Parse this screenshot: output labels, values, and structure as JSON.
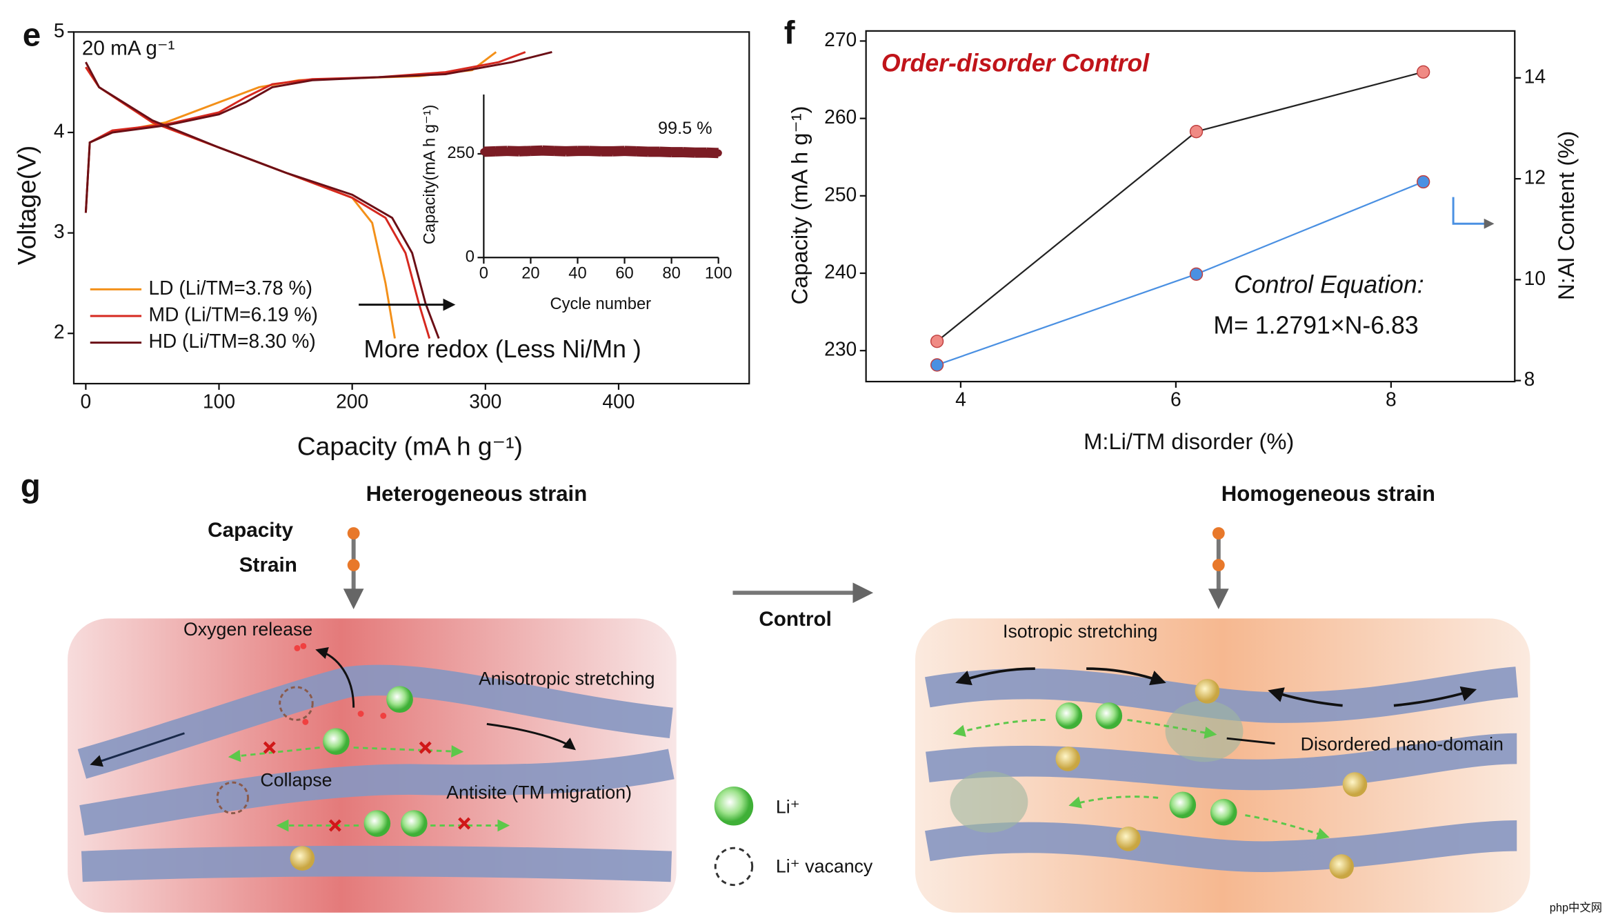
{
  "chart_data": [
    {
      "type": "line",
      "panel_label": "e",
      "x_label": "Capacity (mA h g⁻¹)",
      "y_label": "Voltage(V)",
      "xlim": [
        -9,
        498
      ],
      "ylim": [
        1.5,
        5.0
      ],
      "xticks": [
        0,
        100,
        200,
        300,
        400
      ],
      "yticks": [
        2,
        3,
        4,
        5
      ],
      "legend": "lower left",
      "annotations": [
        "20 mA g⁻¹",
        "More redox (Less Ni/Mn )"
      ],
      "series": [
        {
          "name": "LD (Li/TM=3.78 %)",
          "color": "#f39019",
          "x": [
            0,
            3,
            20,
            60,
            100,
            130,
            160,
            200,
            250,
            290,
            308,
            null,
            0,
            10,
            50,
            100,
            150,
            200,
            215,
            225,
            232
          ],
          "values": [
            3.2,
            3.9,
            4.0,
            4.1,
            4.3,
            4.45,
            4.52,
            4.54,
            4.56,
            4.62,
            4.8,
            null,
            4.65,
            4.45,
            4.1,
            3.85,
            3.6,
            3.35,
            3.1,
            2.5,
            1.95
          ]
        },
        {
          "name": "MD (Li/TM=6.19 %)",
          "color": "#d6281f",
          "x": [
            0,
            3,
            20,
            60,
            100,
            120,
            140,
            170,
            220,
            270,
            310,
            330,
            null,
            0,
            10,
            50,
            100,
            150,
            200,
            225,
            240,
            250,
            258
          ],
          "values": [
            3.2,
            3.9,
            4.02,
            4.08,
            4.2,
            4.35,
            4.48,
            4.53,
            4.55,
            4.6,
            4.7,
            4.8,
            null,
            4.65,
            4.45,
            4.1,
            3.85,
            3.6,
            3.35,
            3.15,
            2.8,
            2.3,
            1.95
          ]
        },
        {
          "name": "HD (Li/TM=8.30 %)",
          "color": "#6b0f16",
          "x": [
            0,
            3,
            20,
            60,
            100,
            120,
            140,
            170,
            220,
            270,
            320,
            350,
            null,
            0,
            10,
            50,
            100,
            150,
            200,
            230,
            245,
            255,
            265
          ],
          "values": [
            3.2,
            3.9,
            4.0,
            4.07,
            4.18,
            4.3,
            4.45,
            4.52,
            4.55,
            4.58,
            4.7,
            4.8,
            null,
            4.7,
            4.45,
            4.12,
            3.85,
            3.6,
            3.38,
            3.15,
            2.8,
            2.3,
            1.95
          ]
        }
      ]
    },
    {
      "type": "scatter",
      "x_label": "Cycle number",
      "y_label": "Capacity(mA h g⁻¹)",
      "xlim": [
        0,
        100
      ],
      "ylim": [
        0,
        393
      ],
      "xticks": [
        0,
        20,
        40,
        60,
        80,
        100
      ],
      "yticks": [
        0,
        250
      ],
      "annotations": [
        "99.5 %"
      ],
      "x": [
        0,
        5,
        10,
        15,
        20,
        25,
        30,
        35,
        40,
        45,
        50,
        55,
        60,
        65,
        70,
        75,
        80,
        85,
        90,
        95,
        100
      ],
      "series": [
        {
          "color": "#7b1c24",
          "values": [
            255,
            256,
            257,
            256,
            257,
            258,
            257,
            256,
            257,
            257,
            256,
            256,
            257,
            256,
            255,
            255,
            254,
            254,
            253,
            253,
            252
          ]
        }
      ]
    },
    {
      "type": "line",
      "panel_label": "f",
      "x_label": "M:Li/TM disorder (%)",
      "y_label": "Capacity (mA h g⁻¹)",
      "y2_label": "N:Al Content (%)",
      "xlim": [
        3.12,
        9.15
      ],
      "ylim": [
        226,
        271.3
      ],
      "y2lim": [
        7.98,
        14.93
      ],
      "xticks": [
        4,
        6,
        8
      ],
      "yticks": [
        230,
        240,
        250,
        260,
        270
      ],
      "y2ticks": [
        8,
        10,
        12,
        14
      ],
      "annotations": [
        "Order-disorder Control",
        "Control Equation:",
        "M= 1.2791×N-6.83"
      ],
      "x": [
        3.78,
        6.19,
        8.3
      ],
      "series": [
        {
          "color": "#222222",
          "marker_color": "#f08a84",
          "values": [
            231.2,
            258.3,
            266.0
          ]
        },
        {
          "color": "#4a90e2",
          "marker_color": "#4a90e2",
          "axis": "y2",
          "values": [
            8.31,
            10.11,
            11.94
          ]
        }
      ]
    }
  ],
  "diagram": {
    "panel_label": "g",
    "left_title": "Heterogeneous strain",
    "right_title": "Homogeneous strain",
    "bar_labels": [
      "Capacity",
      "Strain"
    ],
    "arrow_label": "Control",
    "left_labels": [
      "Oxygen release",
      "Anisotropic stretching",
      "Collapse",
      "Antisite (TM migration)"
    ],
    "legend": [
      "Li⁺",
      "Li⁺ vacancy"
    ],
    "right_labels": [
      "Isotropic stretching",
      "Disordered nano-domain"
    ],
    "watermark": "php中文网"
  }
}
